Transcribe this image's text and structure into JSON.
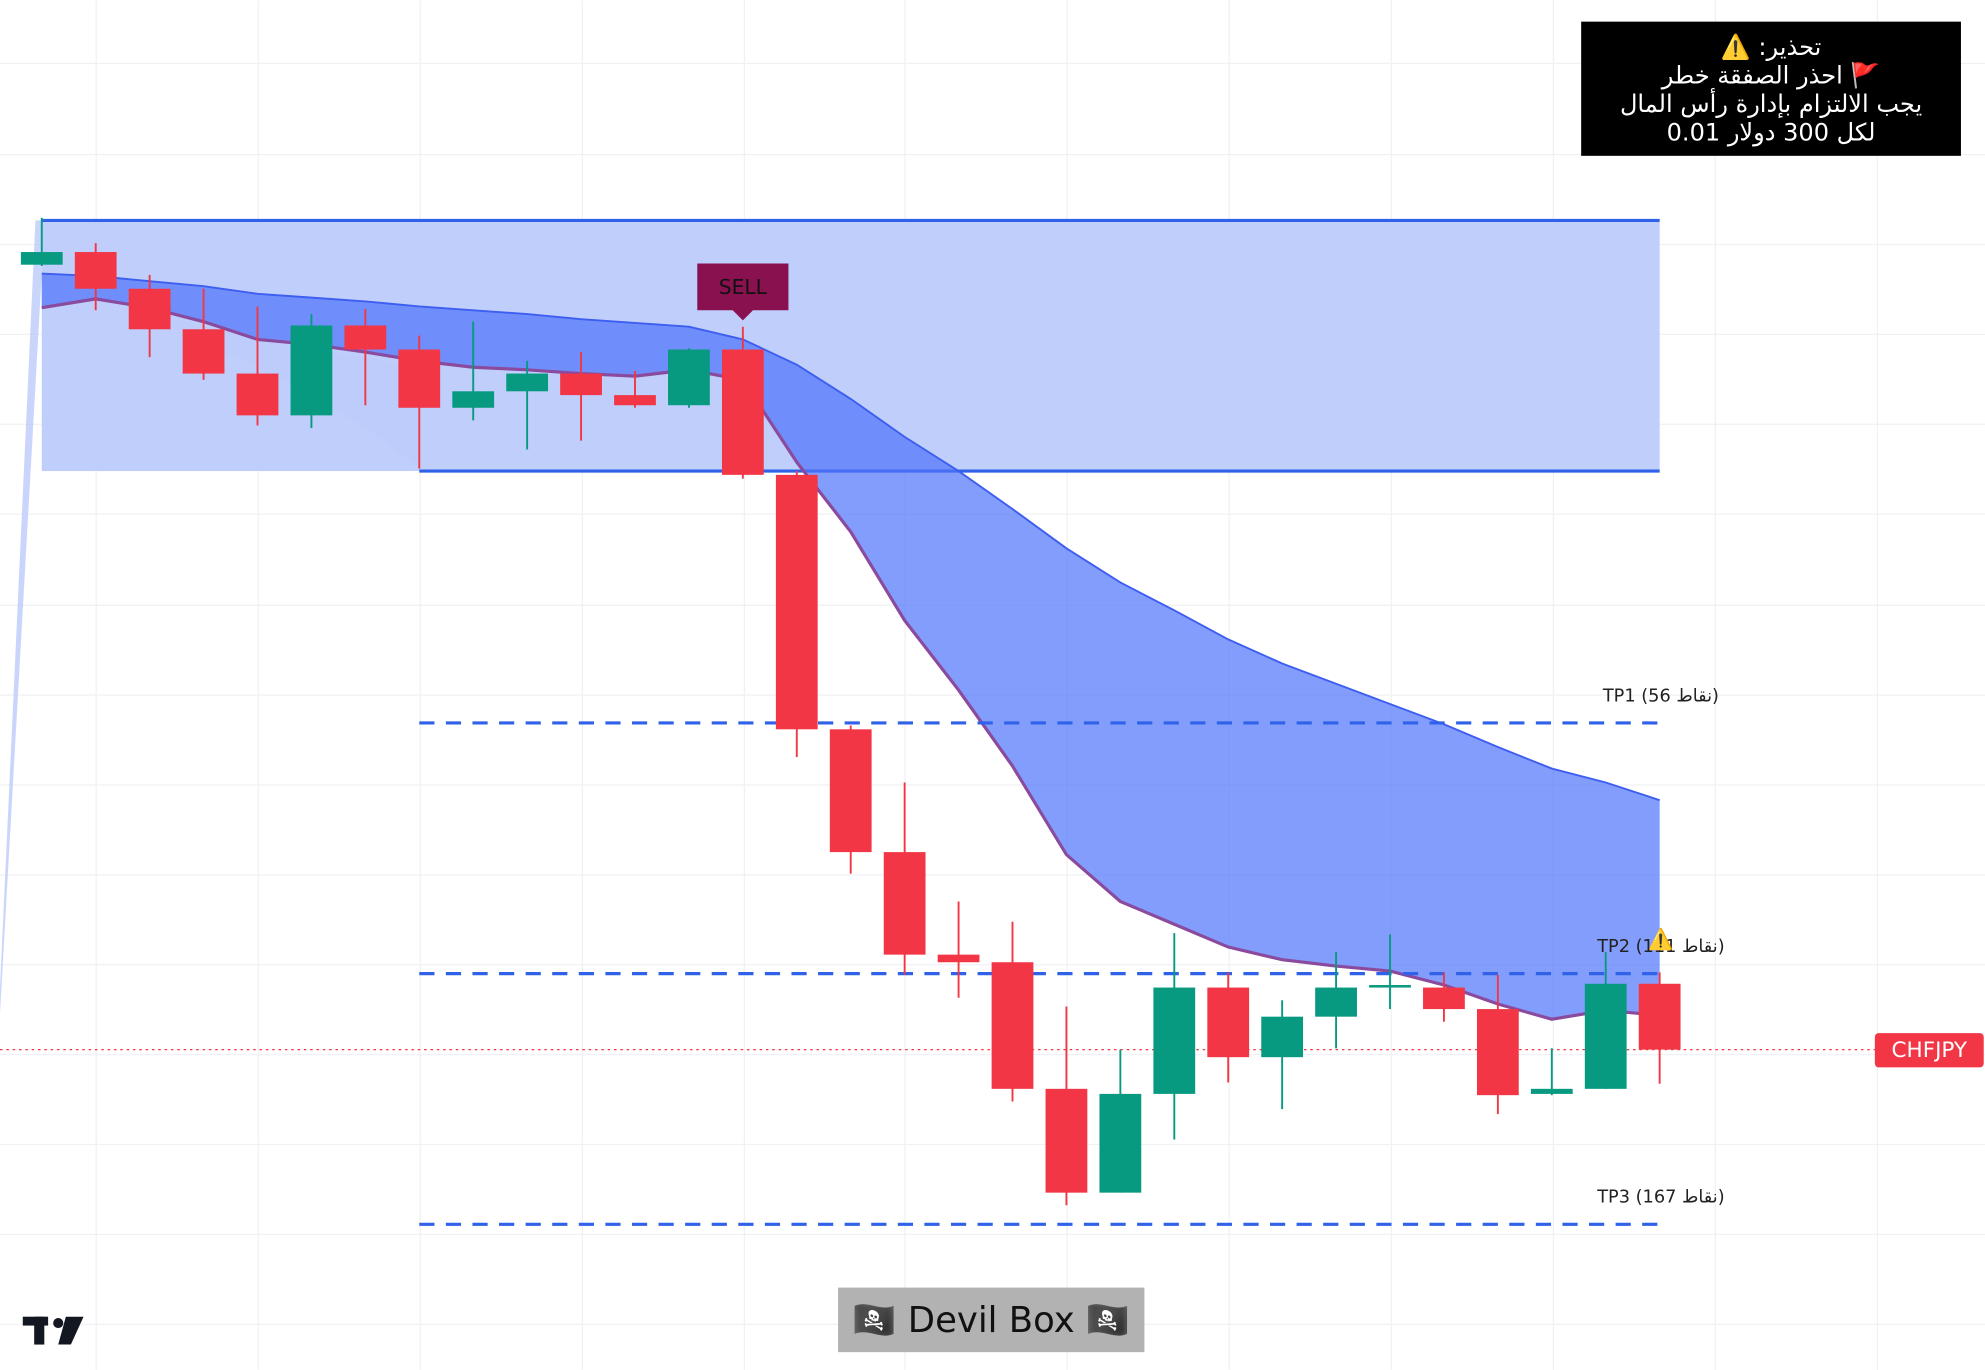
{
  "chart_data": {
    "type": "candlestick",
    "symbol": "CHFJPY",
    "ylim": [
      0,
      1080
    ],
    "up_color": "#089981",
    "down_color": "#f23645",
    "ohlc": {
      "open": [
        871,
        881,
        852,
        820,
        785,
        752,
        823,
        804,
        758,
        771,
        785,
        768,
        760,
        804,
        705,
        504,
        407,
        326,
        320,
        220,
        138,
        216,
        300,
        245,
        277,
        300,
        300,
        283,
        216,
        220,
        303
      ],
      "high": [
        908,
        888,
        863,
        852,
        838,
        832,
        836,
        815,
        826,
        795,
        802,
        787,
        805,
        822,
        708,
        507,
        462,
        368,
        352,
        285,
        251,
        343,
        312,
        290,
        328,
        342,
        312,
        310,
        252,
        328,
        312
      ],
      "low": [
        870,
        835,
        798,
        780,
        744,
        742,
        760,
        710,
        748,
        725,
        732,
        758,
        758,
        702,
        482,
        390,
        310,
        292,
        210,
        128,
        138,
        180,
        225,
        204,
        252,
        283,
        273,
        200,
        215,
        220,
        224
      ],
      "close": [
        881,
        852,
        820,
        785,
        752,
        823,
        804,
        758,
        771,
        785,
        768,
        760,
        804,
        705,
        504,
        407,
        326,
        320,
        220,
        138,
        216,
        300,
        245,
        277,
        300,
        302,
        283,
        215,
        220,
        303,
        251
      ]
    },
    "indicator": {
      "upper_color": "#3d5ef0",
      "lower_color": "#8a4a9e",
      "fill": "#4f74fb",
      "upper": [
        864,
        862,
        858,
        854,
        848,
        845,
        842,
        838,
        835,
        832,
        828,
        825,
        822,
        812,
        792,
        765,
        735,
        708,
        678,
        647,
        620,
        598,
        575,
        556,
        540,
        524,
        508,
        490,
        473,
        462,
        448
      ],
      "lower": [
        837,
        844,
        837,
        826,
        812,
        808,
        802,
        795,
        790,
        788,
        785,
        783,
        788,
        780,
        715,
        660,
        590,
        535,
        475,
        405,
        368,
        350,
        332,
        322,
        317,
        313,
        302,
        287,
        275,
        282,
        278
      ]
    },
    "zone": {
      "top": 906,
      "bottom": 708,
      "color": "#2f62e8"
    },
    "signal_label": "SELL",
    "targets": [
      {
        "label": "TP1 (56 نقاط)",
        "value": 509
      },
      {
        "label": "TP2 (111 نقاط)",
        "value": 311
      },
      {
        "label": "TP3 (167 نقاط)",
        "value": 113
      }
    ],
    "alert_icon": "⚠️",
    "warning": [
      "تحذير: ⚠️",
      "🚩 احذر الصفقة خطر",
      "يجب الالتزام بإدارة رأس المال",
      "لكل 300 دولار 0.01"
    ],
    "watermark": "🏴‍☠️ Devil Box 🏴‍☠️"
  }
}
